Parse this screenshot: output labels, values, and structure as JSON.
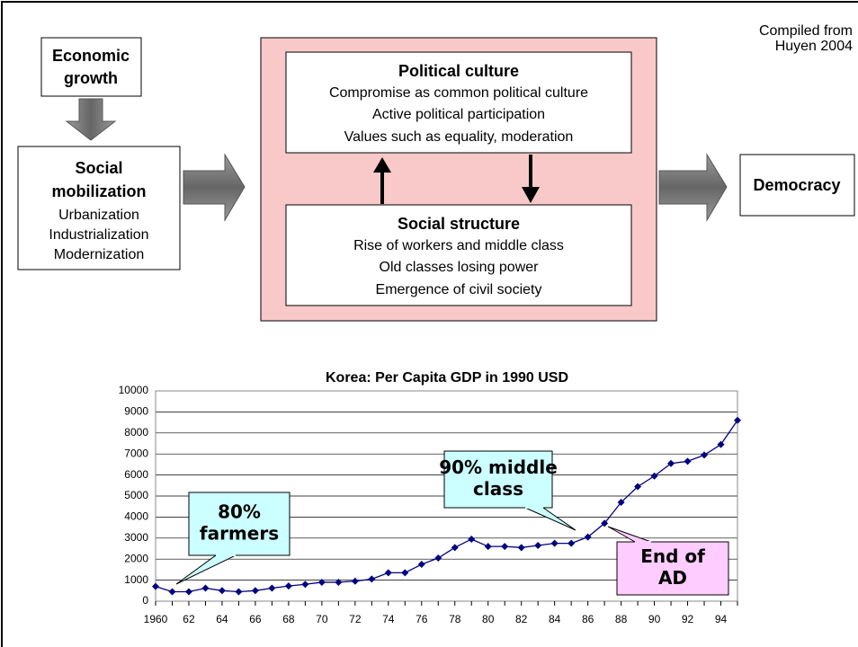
{
  "diagram": {
    "source": [
      "Compiled from",
      "Huyen 2004"
    ],
    "economic_growth": [
      "Economic",
      "growth"
    ],
    "social_mobilization": {
      "title": [
        "Social",
        "mobilization"
      ],
      "items": [
        "Urbanization",
        "Industrialization",
        "Modernization"
      ]
    },
    "political_culture": {
      "title": "Political culture",
      "items": [
        "Compromise as common political culture",
        "Active political participation",
        "Values such as equality, moderation"
      ]
    },
    "social_structure": {
      "title": "Social structure",
      "items": [
        "Rise of workers and middle class",
        "Old classes losing power",
        "Emergence of civil society"
      ]
    },
    "democracy": "Democracy"
  },
  "chart_data": {
    "type": "line",
    "title": "Korea: Per Capita GDP in 1990 USD",
    "categories": [
      "1960",
      null,
      "62",
      null,
      "64",
      null,
      "66",
      null,
      "68",
      null,
      "70",
      null,
      "72",
      null,
      "74",
      null,
      "76",
      null,
      "78",
      null,
      "80",
      null,
      "82",
      null,
      "84",
      null,
      "86",
      null,
      "88",
      null,
      "90",
      null,
      "92",
      null,
      "94",
      null
    ],
    "series": [
      {
        "name": "Per Capita GDP",
        "color": "#000080",
        "values": [
          700,
          450,
          450,
          620,
          500,
          450,
          500,
          620,
          720,
          800,
          900,
          900,
          950,
          1050,
          1350,
          1350,
          1750,
          2050,
          2550,
          2950,
          2600,
          2600,
          2550,
          2650,
          2750,
          2750,
          3050,
          3700,
          4700,
          5450,
          5950,
          6550,
          6650,
          6950,
          7450,
          8600
        ]
      }
    ],
    "ylim": [
      0,
      10000
    ],
    "yticks": [
      0,
      1000,
      2000,
      3000,
      4000,
      5000,
      6000,
      7000,
      8000,
      9000,
      10000
    ],
    "grid": true,
    "annotations": [
      [
        "80%",
        "farmers"
      ],
      [
        "90% middle",
        "class"
      ],
      [
        "End of",
        "AD"
      ]
    ]
  }
}
